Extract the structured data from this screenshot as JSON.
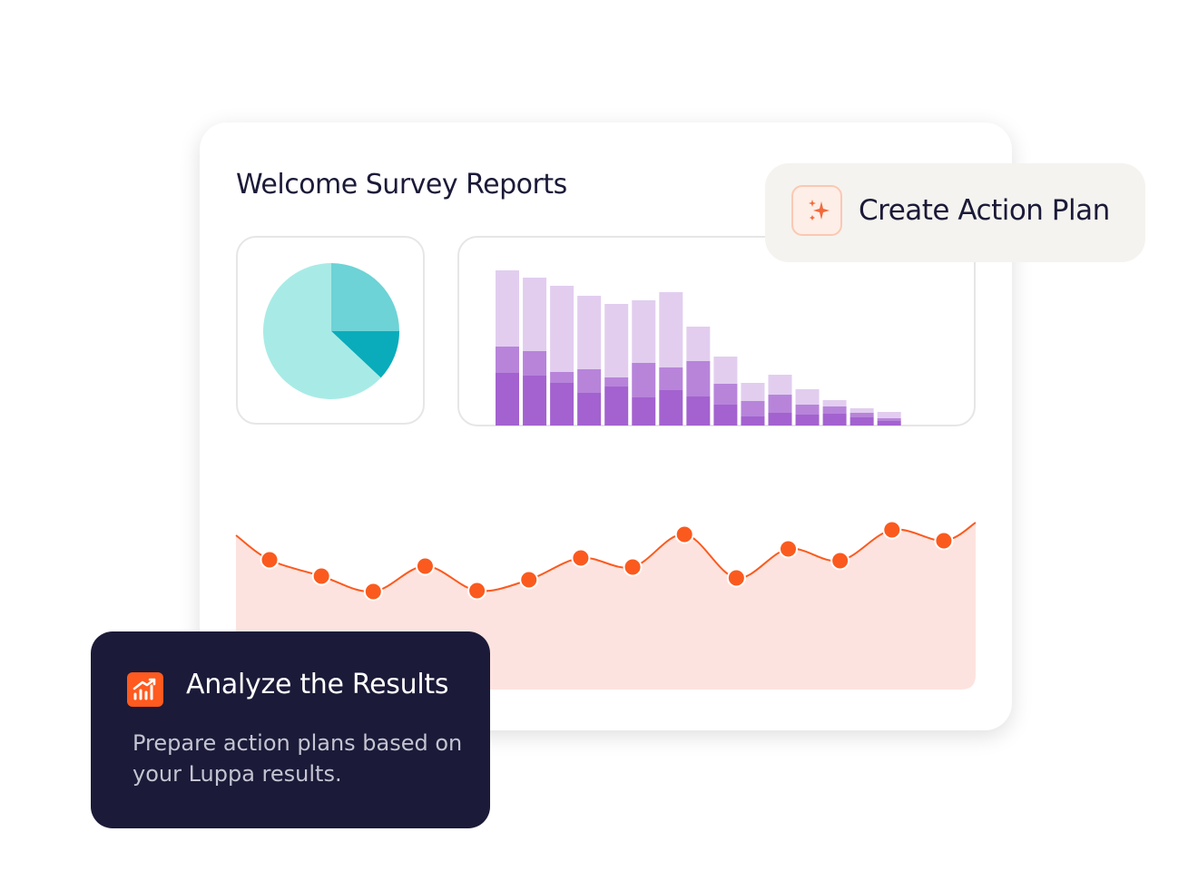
{
  "card_title": "Welcome Survey Reports",
  "action_button": {
    "label": "Create Action Plan"
  },
  "info_card": {
    "title": "Analyze the Results",
    "text": "Prepare action plans based on your Luppa results."
  },
  "chart_data": [
    {
      "type": "pie",
      "values": [
        25,
        12,
        63
      ],
      "colors": [
        "#6dd3d6",
        "#0aacbb",
        "#a8ebe6"
      ]
    },
    {
      "type": "stacked-bar",
      "series": [
        {
          "color": "#a362cf",
          "values": [
            58,
            55,
            47,
            36,
            43,
            31,
            39,
            32,
            23,
            10,
            14,
            12,
            13,
            9,
            5
          ]
        },
        {
          "color": "#b784da",
          "values": [
            29,
            27,
            12,
            26,
            10,
            38,
            25,
            39,
            23,
            17,
            20,
            11,
            8,
            5,
            3
          ]
        },
        {
          "color": "#e2cdef",
          "values": [
            84,
            81,
            95,
            81,
            81,
            69,
            83,
            38,
            30,
            20,
            22,
            17,
            7,
            5,
            7
          ]
        }
      ]
    },
    {
      "type": "area-line",
      "color": "#fb5a1e",
      "fill": "#fde3df",
      "values": [
        143,
        125,
        108,
        136,
        109,
        121,
        145,
        135,
        171,
        123,
        155,
        142,
        176,
        164
      ]
    }
  ]
}
